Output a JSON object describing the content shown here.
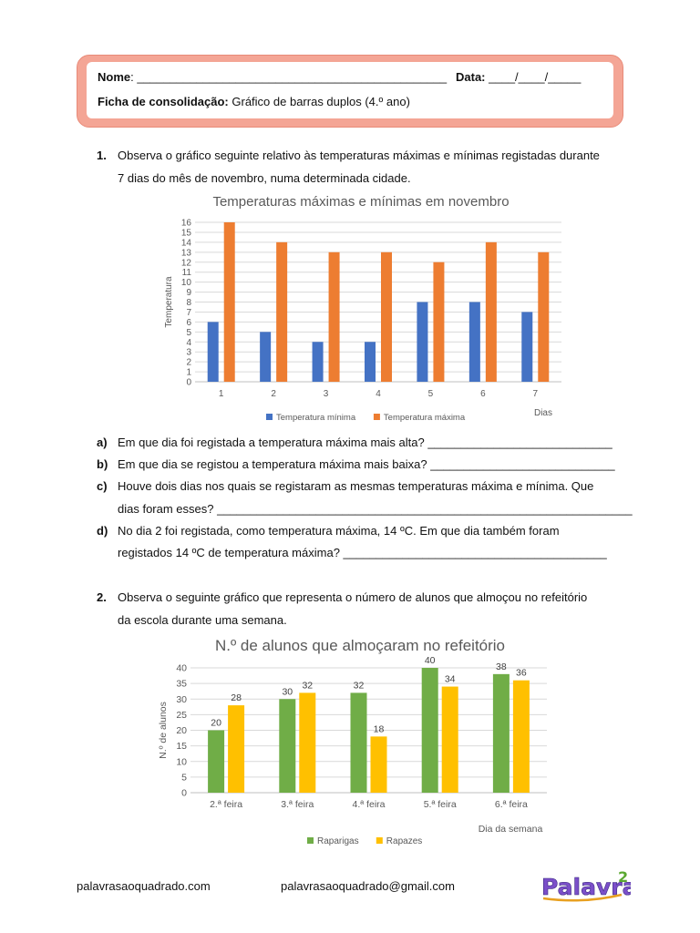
{
  "header": {
    "name_label": "Nome",
    "name_line": ": _______________________________________________",
    "date_label": "Data:",
    "date_line": "____/____/_____",
    "sheet_label": "Ficha de consolidação:",
    "sheet_title": "Gráfico de barras duplos (4.º ano)"
  },
  "q1": {
    "number": "1.",
    "text_line1": "Observa o gráfico seguinte relativo às temperaturas máximas e mínimas registadas durante",
    "text_line2": "7 dias do mês de novembro, numa determinada cidade.",
    "sub": [
      {
        "letter": "a)",
        "lines": [
          "Em que dia foi registada a temperatura máxima mais alta? ____________________________"
        ]
      },
      {
        "letter": "b)",
        "lines": [
          "Em que dia se registou a temperatura máxima mais baixa? ____________________________"
        ]
      },
      {
        "letter": "c)",
        "lines": [
          "Houve dois dias nos quais se registaram as mesmas temperaturas máxima e mínima. Que",
          "dias foram esses? _______________________________________________________________"
        ]
      },
      {
        "letter": "d)",
        "lines": [
          "No dia 2 foi registada, como temperatura máxima, 14 ºC. Em que dia também foram",
          "registados 14 ºC de temperatura máxima? ________________________________________"
        ]
      }
    ]
  },
  "q2": {
    "number": "2.",
    "text_line1": "Observa o seguinte gráfico que representa o número de alunos que almoçou no refeitório",
    "text_line2": "da escola durante uma semana."
  },
  "chart_data": [
    {
      "type": "bar",
      "title": "Temperaturas máximas e mínimas em novembro",
      "xlabel": "Dias",
      "ylabel": "Temperatura",
      "categories": [
        "1",
        "2",
        "3",
        "4",
        "5",
        "6",
        "7"
      ],
      "series": [
        {
          "name": "Temperatura mínima",
          "color": "#4472c4",
          "values": [
            6,
            5,
            4,
            4,
            8,
            8,
            7
          ]
        },
        {
          "name": "Temperatura máxima",
          "color": "#ed7d31",
          "values": [
            16,
            14,
            13,
            13,
            12,
            14,
            13
          ]
        }
      ],
      "ylim": [
        0,
        16
      ],
      "yticks": [
        "0",
        "1",
        "2",
        "3",
        "4",
        "5",
        "6",
        "7",
        "8",
        "9",
        "10",
        "11",
        "12",
        "13",
        "14",
        "15",
        "16"
      ],
      "grid": true,
      "legend": "bottom"
    },
    {
      "type": "bar",
      "title": "N.º de alunos que almoçaram no refeitório",
      "xlabel": "Dia da semana",
      "ylabel": "N.º de alunos",
      "categories": [
        "2.ª feira",
        "3.ª feira",
        "4.ª feira",
        "5.ª feira",
        "6.ª feira"
      ],
      "series": [
        {
          "name": "Raparigas",
          "color": "#70ad47",
          "values": [
            20,
            30,
            32,
            40,
            38
          ]
        },
        {
          "name": "Rapazes",
          "color": "#ffc000",
          "values": [
            28,
            32,
            18,
            34,
            36
          ]
        }
      ],
      "ylim": [
        0,
        40
      ],
      "yticks": [
        "0",
        "5",
        "10",
        "15",
        "20",
        "25",
        "30",
        "35",
        "40"
      ],
      "data_labels": true,
      "grid": true,
      "legend": "bottom"
    }
  ],
  "footer": {
    "website": "palavrasaoquadrado.com",
    "email": "palavrasaoquadrado@gmail.com",
    "logo_text": "Palavras",
    "logo_sup": "2"
  }
}
